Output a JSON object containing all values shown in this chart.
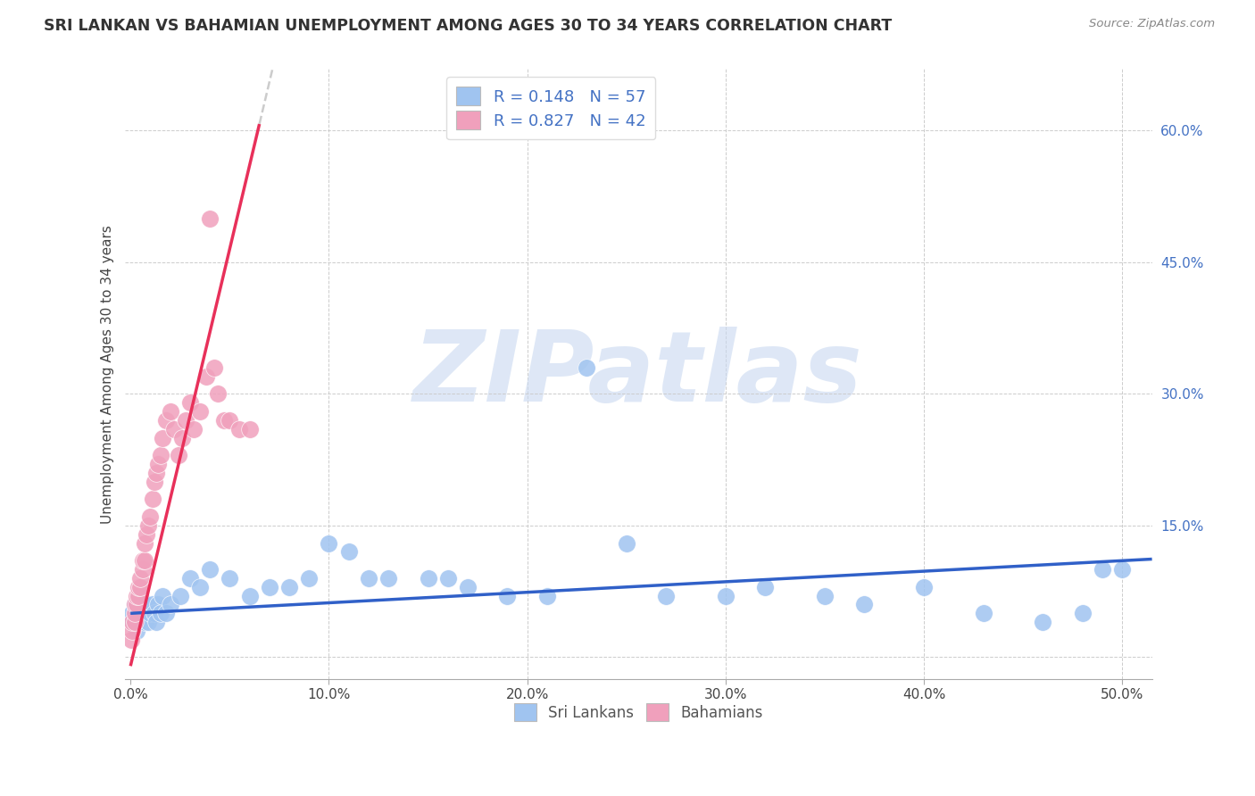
{
  "title": "SRI LANKAN VS BAHAMIAN UNEMPLOYMENT AMONG AGES 30 TO 34 YEARS CORRELATION CHART",
  "source": "Source: ZipAtlas.com",
  "ylabel": "Unemployment Among Ages 30 to 34 years",
  "xlim": [
    -0.003,
    0.515
  ],
  "ylim": [
    -0.025,
    0.67
  ],
  "xticks": [
    0.0,
    0.1,
    0.2,
    0.3,
    0.4,
    0.5
  ],
  "yticks": [
    0.0,
    0.15,
    0.3,
    0.45,
    0.6
  ],
  "ytick_labels": [
    "",
    "15.0%",
    "30.0%",
    "45.0%",
    "60.0%"
  ],
  "xtick_labels": [
    "0.0%",
    "10.0%",
    "20.0%",
    "30.0%",
    "40.0%",
    "50.0%"
  ],
  "sri_lankan_color": "#a0c4f0",
  "bahamian_color": "#f0a0bc",
  "sri_lankan_line_color": "#3060c8",
  "bahamian_line_color": "#e8305a",
  "dashed_ext_color": "#cccccc",
  "watermark": "ZIPatlas",
  "watermark_color": "#c8d8f0",
  "r_sri": 0.148,
  "n_sri": 57,
  "r_bah": 0.827,
  "n_bah": 42,
  "sri_lankans_x": [
    0.001,
    0.001,
    0.002,
    0.002,
    0.003,
    0.003,
    0.004,
    0.004,
    0.005,
    0.005,
    0.006,
    0.006,
    0.007,
    0.007,
    0.008,
    0.008,
    0.009,
    0.01,
    0.011,
    0.012,
    0.013,
    0.014,
    0.015,
    0.016,
    0.018,
    0.02,
    0.025,
    0.03,
    0.035,
    0.04,
    0.05,
    0.06,
    0.07,
    0.08,
    0.09,
    0.1,
    0.11,
    0.12,
    0.13,
    0.15,
    0.16,
    0.17,
    0.19,
    0.21,
    0.23,
    0.25,
    0.27,
    0.3,
    0.32,
    0.35,
    0.37,
    0.4,
    0.43,
    0.46,
    0.48,
    0.49,
    0.5
  ],
  "sri_lankans_y": [
    0.04,
    0.05,
    0.04,
    0.06,
    0.05,
    0.03,
    0.06,
    0.04,
    0.07,
    0.05,
    0.05,
    0.06,
    0.04,
    0.06,
    0.05,
    0.06,
    0.04,
    0.05,
    0.06,
    0.05,
    0.04,
    0.06,
    0.05,
    0.07,
    0.05,
    0.06,
    0.07,
    0.09,
    0.08,
    0.1,
    0.09,
    0.07,
    0.08,
    0.08,
    0.09,
    0.13,
    0.12,
    0.09,
    0.09,
    0.09,
    0.09,
    0.08,
    0.07,
    0.07,
    0.33,
    0.13,
    0.07,
    0.07,
    0.08,
    0.07,
    0.06,
    0.08,
    0.05,
    0.04,
    0.05,
    0.1,
    0.1
  ],
  "bahamians_x": [
    0.0005,
    0.001,
    0.001,
    0.002,
    0.002,
    0.002,
    0.003,
    0.003,
    0.004,
    0.004,
    0.005,
    0.005,
    0.006,
    0.006,
    0.007,
    0.007,
    0.008,
    0.009,
    0.01,
    0.011,
    0.012,
    0.013,
    0.014,
    0.015,
    0.016,
    0.018,
    0.02,
    0.022,
    0.024,
    0.026,
    0.028,
    0.03,
    0.032,
    0.035,
    0.038,
    0.04,
    0.042,
    0.044,
    0.047,
    0.05,
    0.055,
    0.06
  ],
  "bahamians_y": [
    0.02,
    0.03,
    0.04,
    0.04,
    0.05,
    0.06,
    0.06,
    0.07,
    0.07,
    0.08,
    0.08,
    0.09,
    0.1,
    0.11,
    0.11,
    0.13,
    0.14,
    0.15,
    0.16,
    0.18,
    0.2,
    0.21,
    0.22,
    0.23,
    0.25,
    0.27,
    0.28,
    0.26,
    0.23,
    0.25,
    0.27,
    0.29,
    0.26,
    0.28,
    0.32,
    0.5,
    0.33,
    0.3,
    0.27,
    0.27,
    0.26,
    0.26
  ],
  "bah_line_x_start": 0.0,
  "bah_line_x_solid_end": 0.065,
  "bah_line_x_dash_end": 0.38,
  "title_fontsize": 12.5,
  "source_fontsize": 9.5,
  "tick_fontsize": 11,
  "ylabel_fontsize": 11,
  "legend_fontsize": 13
}
